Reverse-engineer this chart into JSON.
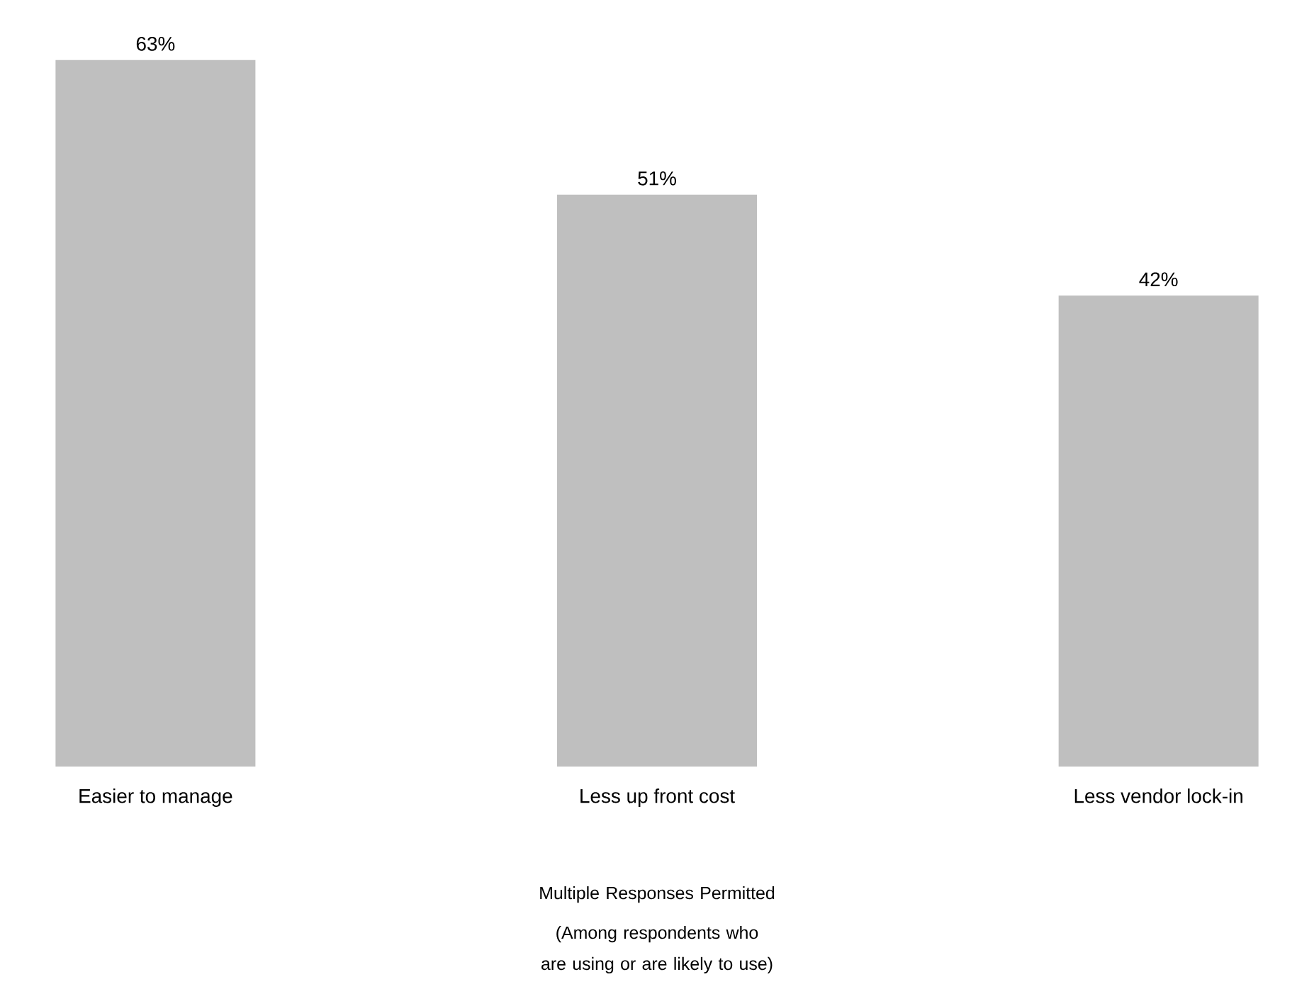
{
  "chart_data": {
    "type": "bar",
    "categories": [
      "Easier to manage",
      "Less up front cost",
      "Less vendor lock-in"
    ],
    "values": [
      63,
      51,
      42
    ],
    "value_labels": [
      "63%",
      "51%",
      "42%"
    ],
    "color": "#bfbfbf",
    "annotations": [
      "Multiple Responses Permitted",
      "(Among respondents who are using or are likely to use)"
    ]
  }
}
